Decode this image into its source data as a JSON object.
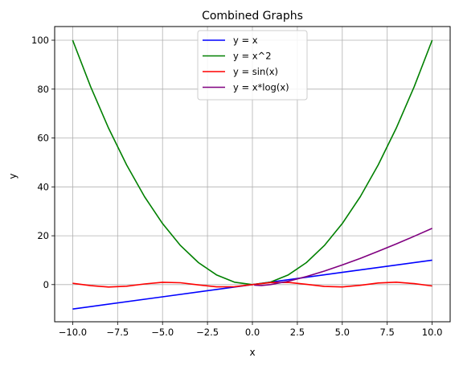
{
  "chart_data": {
    "type": "line",
    "title": "Combined Graphs",
    "xlabel": "x",
    "ylabel": "y",
    "xlim": [
      -11,
      11
    ],
    "ylim": [
      -15.2,
      105.6
    ],
    "xticks": [
      -10,
      -7.5,
      -5,
      -2.5,
      0,
      2.5,
      5,
      7.5,
      10
    ],
    "xtick_labels": [
      "−10.0",
      "−7.5",
      "−5.0",
      "−2.5",
      "0.0",
      "2.5",
      "5.0",
      "7.5",
      "10.0"
    ],
    "yticks": [
      0,
      20,
      40,
      60,
      80,
      100
    ],
    "ytick_labels": [
      "0",
      "20",
      "40",
      "60",
      "80",
      "100"
    ],
    "grid": true,
    "legend_position": "top-center",
    "series": [
      {
        "name": "y = x",
        "color": "#0000ff",
        "x": [
          -10,
          -5,
          0,
          5,
          10
        ],
        "y": [
          -10,
          -5,
          0,
          5,
          10
        ]
      },
      {
        "name": "y = x^2",
        "color": "#008000",
        "x": [
          -10,
          -9,
          -8,
          -7,
          -6,
          -5,
          -4,
          -3,
          -2,
          -1,
          0,
          1,
          2,
          3,
          4,
          5,
          6,
          7,
          8,
          9,
          10
        ],
        "y": [
          100,
          81,
          64,
          49,
          36,
          25,
          16,
          9,
          4,
          1,
          0,
          1,
          4,
          9,
          16,
          25,
          36,
          49,
          64,
          81,
          100
        ]
      },
      {
        "name": "y = sin(x)",
        "color": "#ff0000",
        "x": [
          -10,
          -9,
          -8,
          -7,
          -6,
          -5,
          -4,
          -3,
          -2,
          -1,
          0,
          1,
          2,
          3,
          4,
          5,
          6,
          7,
          8,
          9,
          10
        ],
        "y": [
          0.54,
          -0.41,
          -0.99,
          -0.66,
          0.28,
          0.96,
          0.76,
          -0.14,
          -0.91,
          -0.84,
          0,
          0.84,
          0.91,
          0.14,
          -0.76,
          -0.96,
          -0.28,
          0.66,
          0.99,
          0.41,
          -0.54
        ]
      },
      {
        "name": "y = x*log(x)",
        "color": "#800080",
        "x": [
          0.1,
          0.5,
          1,
          2,
          3,
          4,
          5,
          6,
          7,
          8,
          9,
          10
        ],
        "y": [
          -0.23,
          -0.35,
          0,
          1.39,
          3.3,
          5.55,
          8.05,
          10.75,
          13.62,
          16.64,
          19.78,
          23.03
        ]
      }
    ]
  }
}
